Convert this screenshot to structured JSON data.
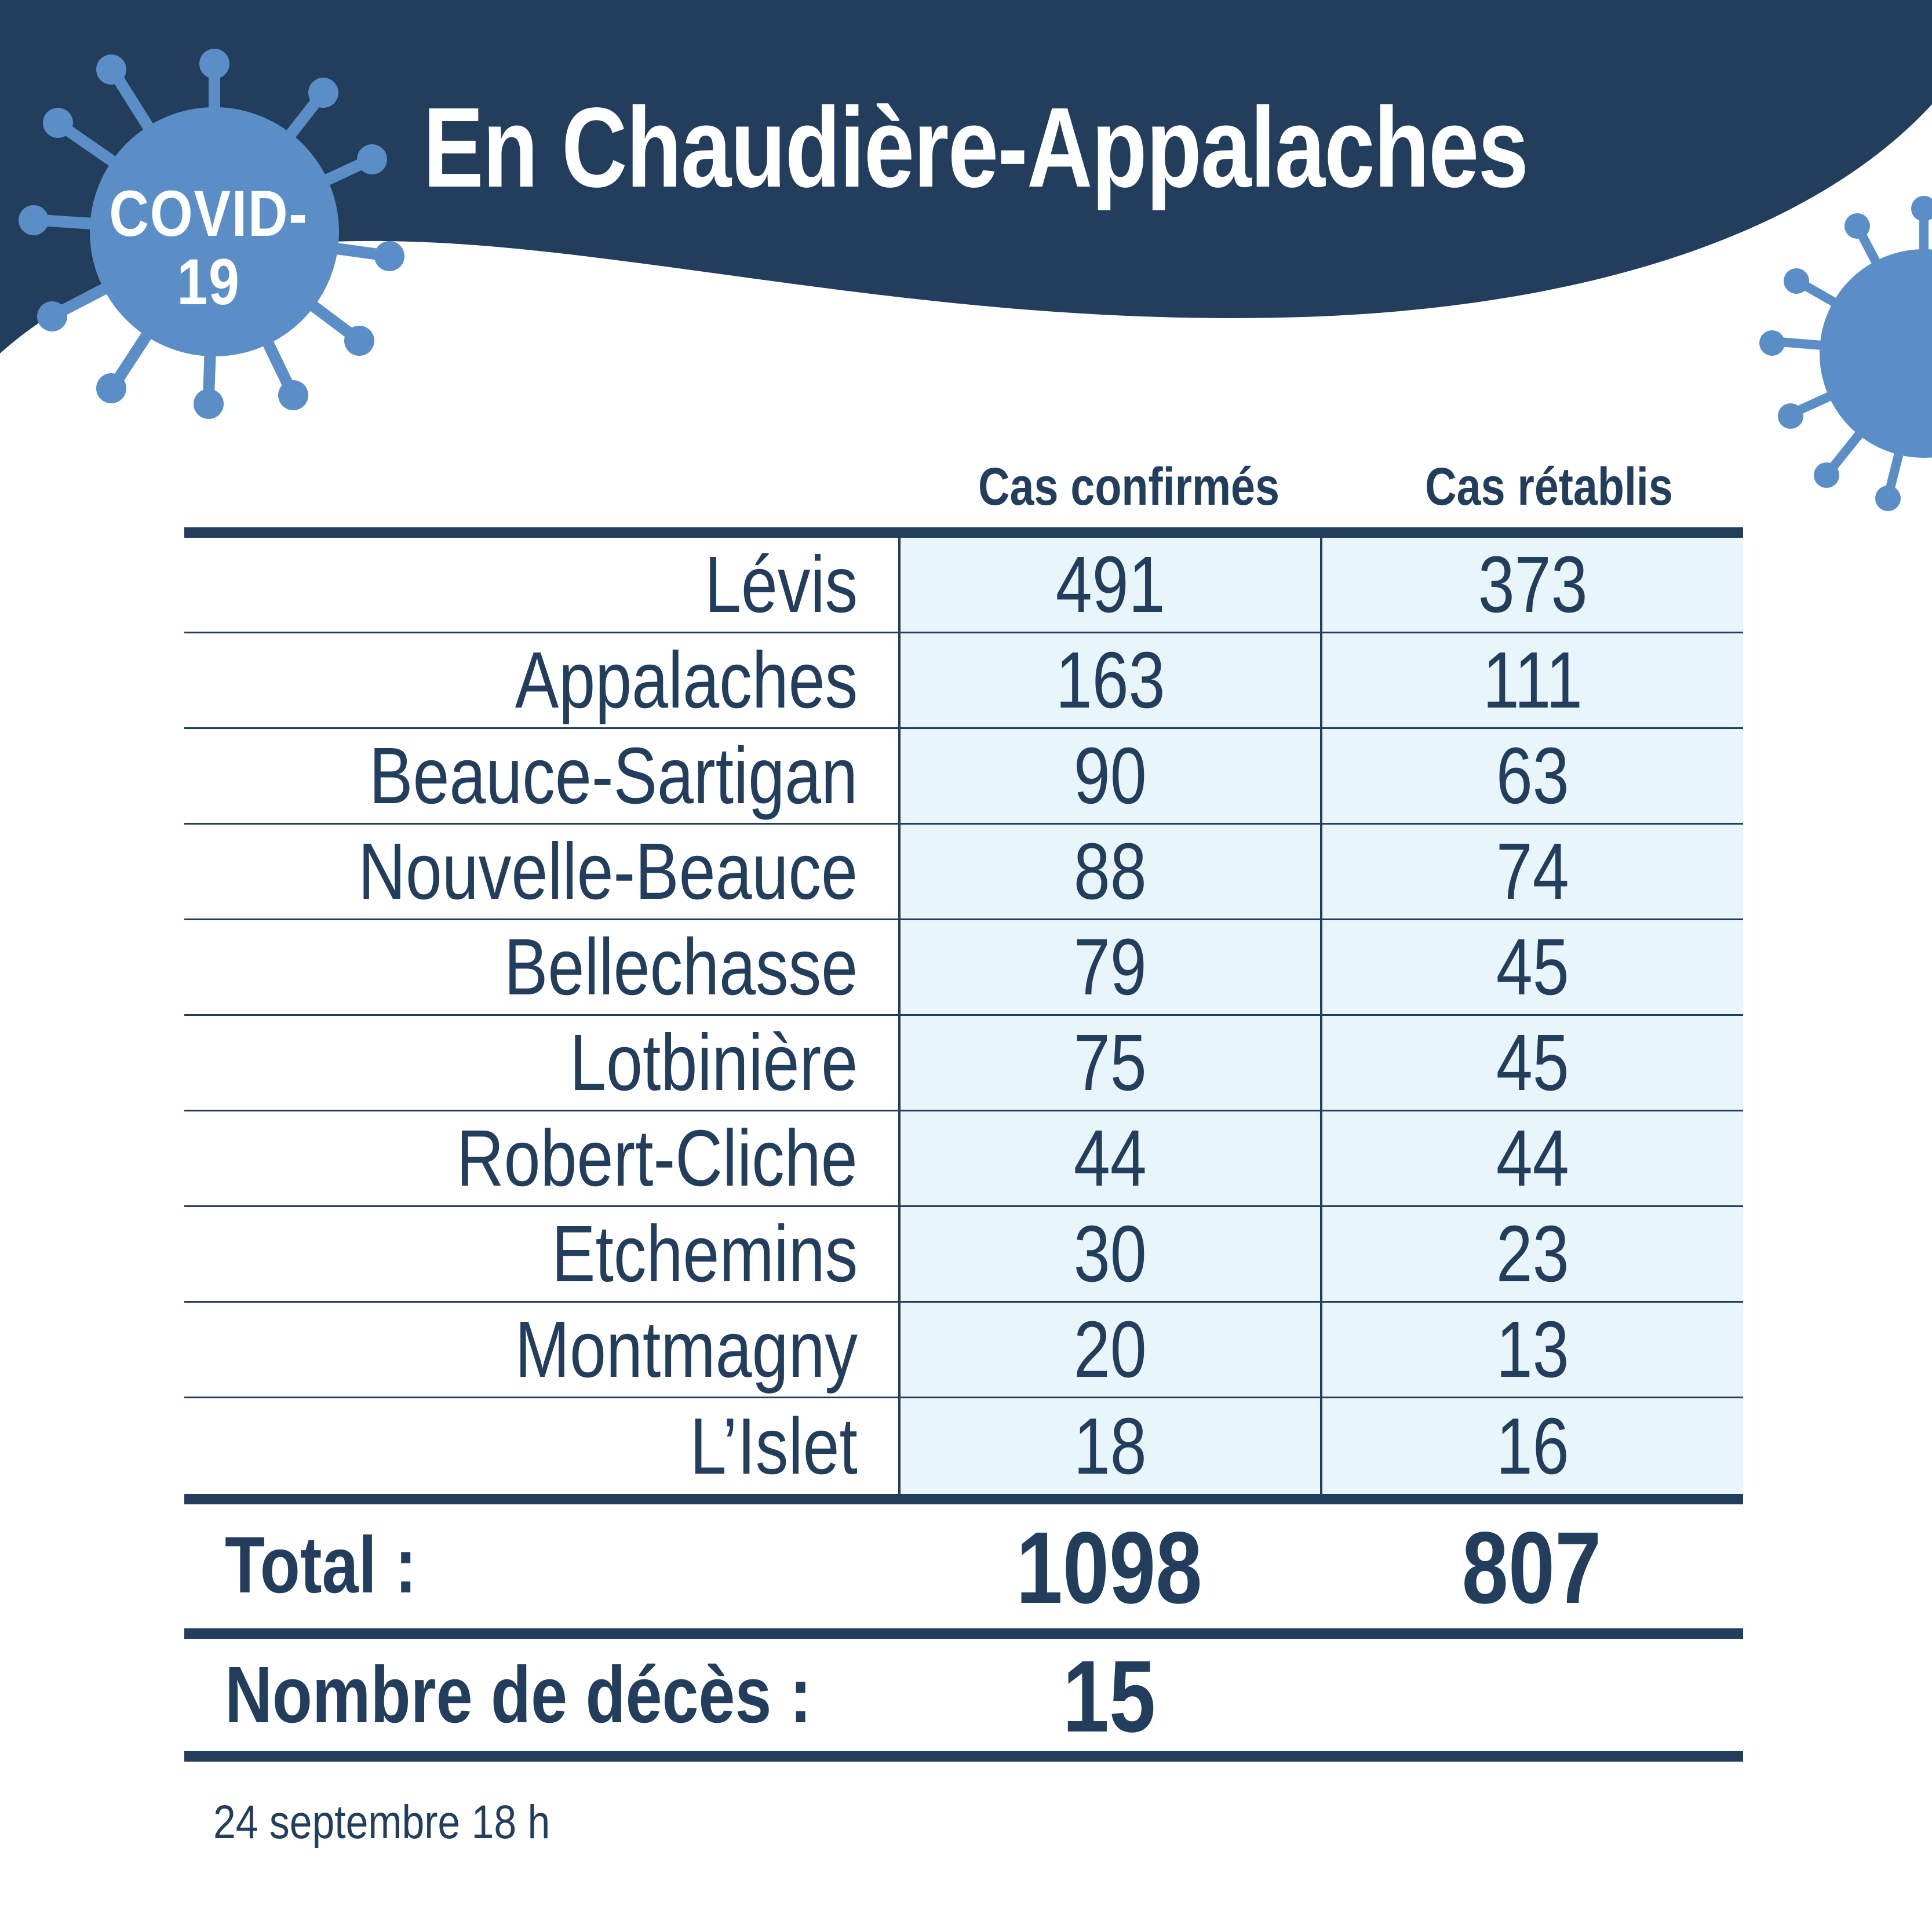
{
  "badge": {
    "line1": "COVID-",
    "line2": "19"
  },
  "title": "En Chaudière-Appalaches",
  "colors": {
    "navy": "#233d5c",
    "virus_blue": "#5b8ec7",
    "cell_bg": "#e8f5fb"
  },
  "table": {
    "headers": {
      "confirmes": "Cas confirmés",
      "retablis": "Cas rétablis"
    },
    "rows": [
      {
        "name": "Lévis",
        "confirmes": "491",
        "retablis": "373"
      },
      {
        "name": "Appalaches",
        "confirmes": "163",
        "retablis": "111"
      },
      {
        "name": "Beauce-Sartigan",
        "confirmes": "90",
        "retablis": "63"
      },
      {
        "name": "Nouvelle-Beauce",
        "confirmes": "88",
        "retablis": "74"
      },
      {
        "name": "Bellechasse",
        "confirmes": "79",
        "retablis": "45"
      },
      {
        "name": "Lotbinière",
        "confirmes": "75",
        "retablis": "45"
      },
      {
        "name": "Robert-Cliche",
        "confirmes": "44",
        "retablis": "44"
      },
      {
        "name": "Etchemins",
        "confirmes": "30",
        "retablis": "23"
      },
      {
        "name": "Montmagny",
        "confirmes": "20",
        "retablis": "13"
      },
      {
        "name": "L’Islet",
        "confirmes": "18",
        "retablis": "16"
      }
    ],
    "total": {
      "label": "Total :",
      "confirmes": "1098",
      "retablis": "807"
    },
    "deces": {
      "label": "Nombre de décès :",
      "value": "15"
    }
  },
  "footer": {
    "date": "24 septembre 18 h"
  }
}
